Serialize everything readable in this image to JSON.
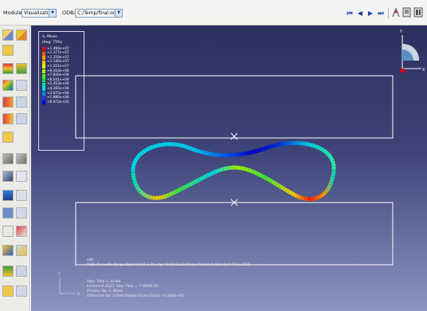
{
  "context_bar": {
    "module_label": "Module:",
    "module_value": "Visualization",
    "odb_label": "ODB:",
    "odb_value": "C:/Temp/final.odb"
  },
  "playback": {
    "icons": [
      "first-frame-icon",
      "previous-frame-icon",
      "next-frame-icon",
      "last-frame-icon"
    ],
    "glyphs": [
      "⏮",
      "◀",
      "▶",
      "⏭"
    ]
  },
  "legend": {
    "title": "S, Mises",
    "subtitle": "(Avg: 75%)",
    "entries": [
      {
        "value": "+1.496e+07",
        "color": "#ff0000"
      },
      {
        "value": "+1.377e+07",
        "color": "#ff5a00"
      },
      {
        "value": "+1.259e+07",
        "color": "#ff9600"
      },
      {
        "value": "+1.140e+07",
        "color": "#ffcc00"
      },
      {
        "value": "+1.021e+07",
        "color": "#e8f000"
      },
      {
        "value": "+9.018e+06",
        "color": "#a8f000"
      },
      {
        "value": "+7.830e+06",
        "color": "#55ee00"
      },
      {
        "value": "+6.641e+06",
        "color": "#00e838"
      },
      {
        "value": "+5.453e+06",
        "color": "#00e8a0"
      },
      {
        "value": "+4.265e+06",
        "color": "#00d8e8"
      },
      {
        "value": "+3.075e+06",
        "color": "#008cf0"
      },
      {
        "value": "+1.886e+06",
        "color": "#0040f0"
      },
      {
        "value": "+6.972e+05",
        "color": "#0000d8"
      }
    ]
  },
  "viewport_info": {
    "odb_line_1": "ODB: final.odb    Abaqus/Explicit 6.9-1    Thu Apr 09 08:02:22 Malay Peninsula Standard Time 2015",
    "step_line": "Step: Step-1, axidia",
    "increment_line": "Increment     8325: Step Time =   7.5000E-03",
    "primary_var_line": "Primary Var: S, Mises",
    "deformed_var_line": "Deformed Var: U   Deformation Scale Factor: +1.000e+00",
    "odb_tag": "odb"
  },
  "triad": {
    "y_label": "Y",
    "x_label": "X"
  },
  "view_cube_axis": {
    "y_label": "Y",
    "x_label": "X"
  }
}
